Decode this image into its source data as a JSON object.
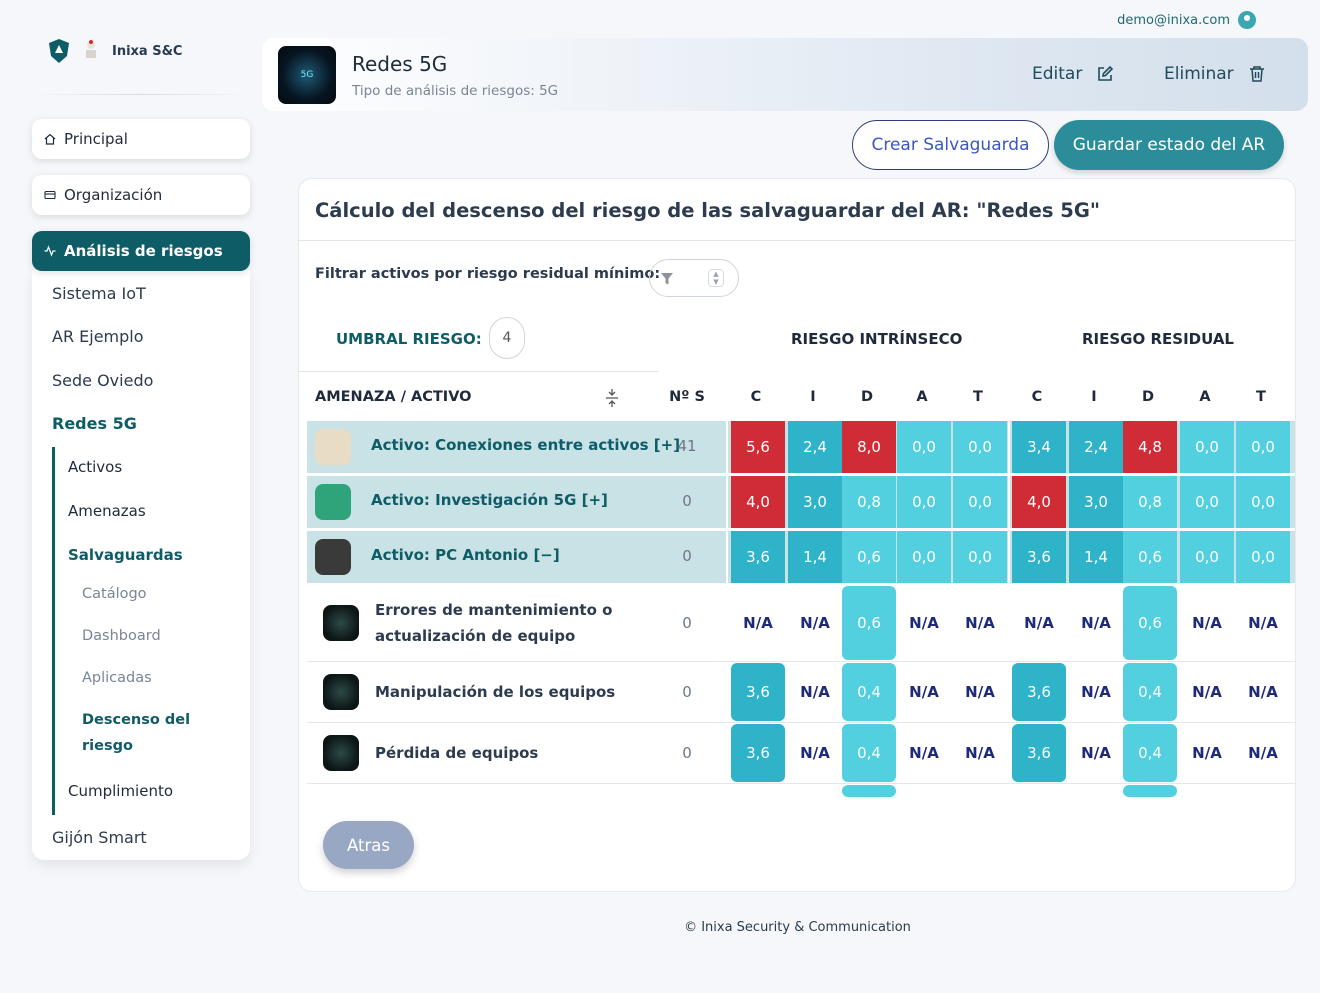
{
  "user": {
    "email": "demo@inixa.com",
    "icon": "user-icon"
  },
  "brand": {
    "name": "Inixa S&C"
  },
  "sidebar": {
    "main_items": [
      {
        "label": "Principal",
        "icon": "home-icon"
      },
      {
        "label": "Organización",
        "icon": "card-icon"
      },
      {
        "label": "Análisis de riesgos",
        "icon": "activity-icon"
      }
    ],
    "analyses": [
      "Sistema IoT",
      "AR Ejemplo",
      "Sede Oviedo",
      "Redes 5G",
      "Gijón Smart"
    ],
    "redes_sub": [
      "Activos",
      "Amenazas",
      "Salvaguardas",
      "Cumplimiento"
    ],
    "salvaguardas_sub": [
      "Catálogo",
      "Dashboard",
      "Aplicadas",
      "Descenso del riesgo"
    ]
  },
  "header": {
    "title": "Redes 5G",
    "subtitle": "Tipo de análisis de riesgos: 5G",
    "thumb_text": "5G",
    "edit_label": "Editar",
    "delete_label": "Eliminar"
  },
  "actions": {
    "create_label": "Crear Salvaguarda",
    "save_label": "Guardar estado del AR"
  },
  "main": {
    "title": "Cálculo del descenso del riesgo de las salvaguardar del AR: \"Redes 5G\"",
    "filter_label": "Filtrar activos por riesgo residual mínimo:",
    "umbral_label": "UMBRAL RIESGO:",
    "umbral_value": "4",
    "group_intrinsic": "RIESGO INTRÍNSECO",
    "group_residual": "RIESGO RESIDUAL",
    "col_threat": "AMENAZA / ACTIVO",
    "col_ns": "Nº S",
    "dims": [
      "C",
      "I",
      "D",
      "A",
      "T"
    ],
    "back_label": "Atras"
  },
  "assets": [
    {
      "name": "Activo: Conexiones entre activos [+]",
      "ns": "41",
      "intrinsic": [
        "5,6",
        "2,4",
        "8,0",
        "0,0",
        "0,0"
      ],
      "residual": [
        "3,4",
        "2,4",
        "4,8",
        "0,0",
        "0,0"
      ]
    },
    {
      "name": "Activo: Investigación 5G [+]",
      "ns": "0",
      "intrinsic": [
        "4,0",
        "3,0",
        "0,8",
        "0,0",
        "0,0"
      ],
      "residual": [
        "4,0",
        "3,0",
        "0,8",
        "0,0",
        "0,0"
      ]
    },
    {
      "name": "Activo: PC Antonio [−]",
      "ns": "0",
      "intrinsic": [
        "3,6",
        "1,4",
        "0,6",
        "0,0",
        "0,0"
      ],
      "residual": [
        "3,6",
        "1,4",
        "0,6",
        "0,0",
        "0,0"
      ]
    }
  ],
  "threats": [
    {
      "name": "Errores de mantenimiento o actualización de equipo",
      "ns": "0",
      "intrinsic": [
        "N/A",
        "N/A",
        "0,6",
        "N/A",
        "N/A"
      ],
      "residual": [
        "N/A",
        "N/A",
        "0,6",
        "N/A",
        "N/A"
      ]
    },
    {
      "name": "Manipulación de los equipos",
      "ns": "0",
      "intrinsic": [
        "3,6",
        "N/A",
        "0,4",
        "N/A",
        "N/A"
      ],
      "residual": [
        "3,6",
        "N/A",
        "0,4",
        "N/A",
        "N/A"
      ]
    },
    {
      "name": "Pérdida de equipos",
      "ns": "0",
      "intrinsic": [
        "3,6",
        "N/A",
        "0,4",
        "N/A",
        "N/A"
      ],
      "residual": [
        "3,6",
        "N/A",
        "0,4",
        "N/A",
        "N/A"
      ]
    }
  ],
  "footer": "© Inixa Security & Communication"
}
